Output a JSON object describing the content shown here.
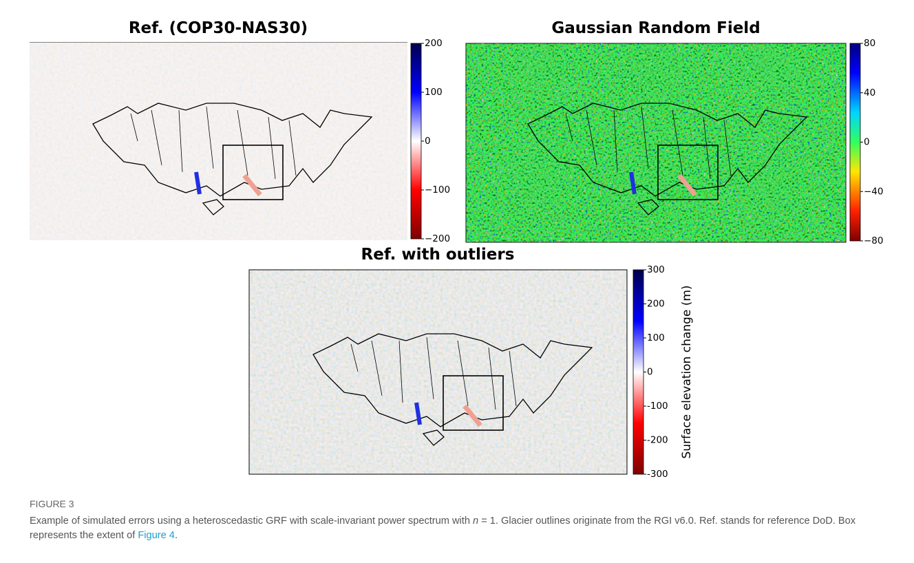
{
  "panels": [
    {
      "title": "Ref. (COP30-NAS30)",
      "colorbar": {
        "ticks": [
          "200",
          "100",
          "0",
          "−100",
          "−200"
        ]
      }
    },
    {
      "title": "Gaussian Random Field",
      "colorbar": {
        "ticks": [
          "80",
          "40",
          "0",
          "−40",
          "−80"
        ]
      }
    },
    {
      "title": "Ref. with outliers",
      "colorbar": {
        "ticks": [
          "300",
          "200",
          "100",
          "0",
          "-100",
          "-200",
          "-300"
        ],
        "label": "Surface elevation change (m)"
      }
    }
  ],
  "figure": {
    "label": "FIGURE 3",
    "caption": [
      "Example of simulated errors using a heteroscedastic GRF with scale-invariant power spectrum with ",
      "n",
      " = 1. Glacier outlines originate from the RGI v6.0. Ref. stands for reference DoD. Box represents the extent of ",
      "Figure 4",
      "."
    ]
  }
}
